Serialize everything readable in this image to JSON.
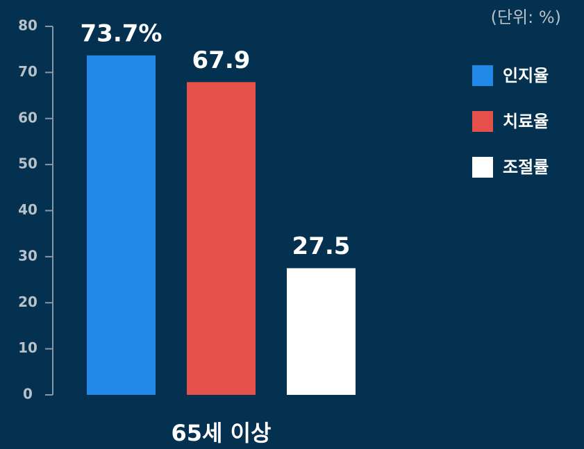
{
  "chart_data": {
    "type": "bar",
    "unit_label": "(단위: %)",
    "categories": [
      "65세 이상"
    ],
    "series": [
      {
        "name": "인지율",
        "color": "#2188e8",
        "values": [
          73.7
        ],
        "value_labels": [
          "73.7%"
        ]
      },
      {
        "name": "치료율",
        "color": "#e5504a",
        "values": [
          67.9
        ]
      },
      {
        "name": "조절률",
        "color": "#ffffff",
        "values": [
          27.5
        ]
      }
    ],
    "ylim": [
      0,
      80
    ],
    "yticks": [
      0,
      10,
      20,
      30,
      40,
      50,
      60,
      70,
      80
    ],
    "legend": "upper right"
  }
}
